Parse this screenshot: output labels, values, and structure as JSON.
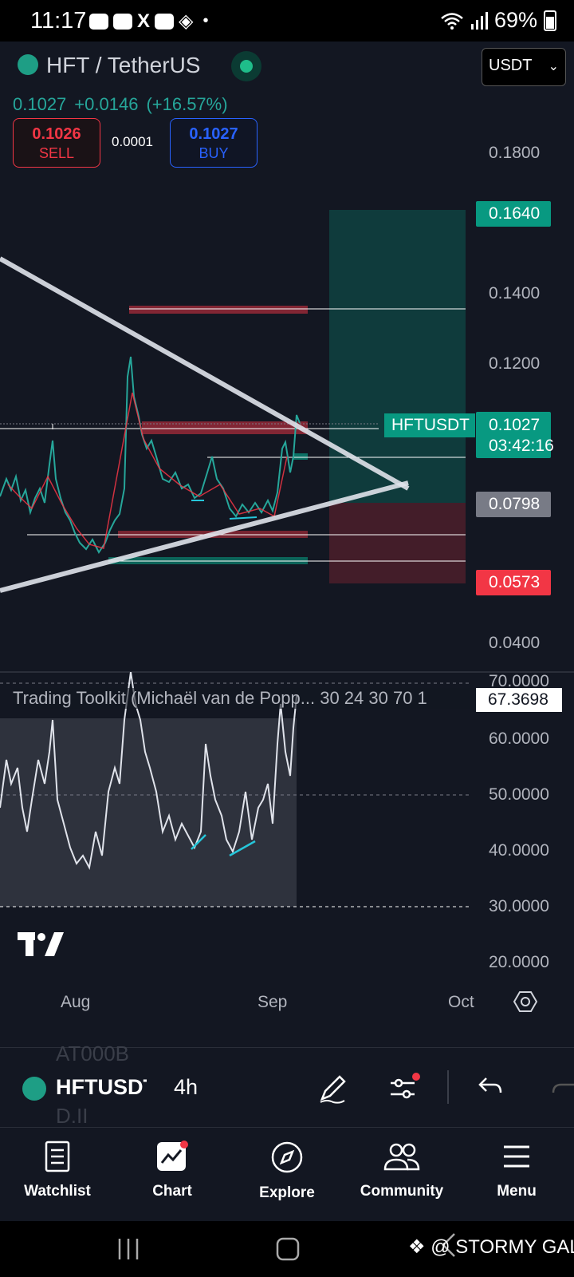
{
  "status_bar": {
    "time": "11:17",
    "battery": "69%",
    "more_indicator": "•"
  },
  "header": {
    "symbol_title": "HFT / TetherUS",
    "last_price": "0.1027",
    "change": "+0.0146",
    "change_pct": "(+16.57%)",
    "currency": "USDT",
    "sell_price": "0.1026",
    "sell_label": "SELL",
    "spread": "0.0001",
    "buy_price": "0.1027",
    "buy_label": "BUY"
  },
  "price_axis": {
    "labels": [
      "0.1800",
      "0.1400",
      "0.1200",
      "0.0400"
    ],
    "tags": {
      "target": "0.1640",
      "current_price": "0.1027",
      "countdown": "03:42:16",
      "symbol": "HFTUSDT",
      "level": "0.0798",
      "stop": "0.0573"
    }
  },
  "indicator": {
    "title": "Trading Toolkit (Michaël van de Popp... 30 24 30 70 1",
    "value": "67.3698",
    "axis": [
      "70.0000",
      "60.0000",
      "50.0000",
      "40.0000",
      "30.0000",
      "20.0000"
    ]
  },
  "time_axis": {
    "labels": [
      "Aug",
      "Sep",
      "Oct"
    ]
  },
  "toolbar": {
    "ghost_top": "AT000B",
    "ghost_bottom": "D.II",
    "symbol": "HFTUSDT",
    "interval": "4h"
  },
  "bottom_nav": {
    "items": [
      {
        "label": "Watchlist",
        "icon": "watchlist-icon"
      },
      {
        "label": "Chart",
        "icon": "chart-icon"
      },
      {
        "label": "Explore",
        "icon": "compass-icon"
      },
      {
        "label": "Community",
        "icon": "community-icon"
      },
      {
        "label": "Menu",
        "icon": "menu-icon"
      }
    ]
  },
  "watermark": "@ STORMY GAL",
  "colors": {
    "background": "#131722",
    "up": "#26a69a",
    "down": "#f23645",
    "buy": "#2962ff",
    "target_zone": "#089981"
  }
}
